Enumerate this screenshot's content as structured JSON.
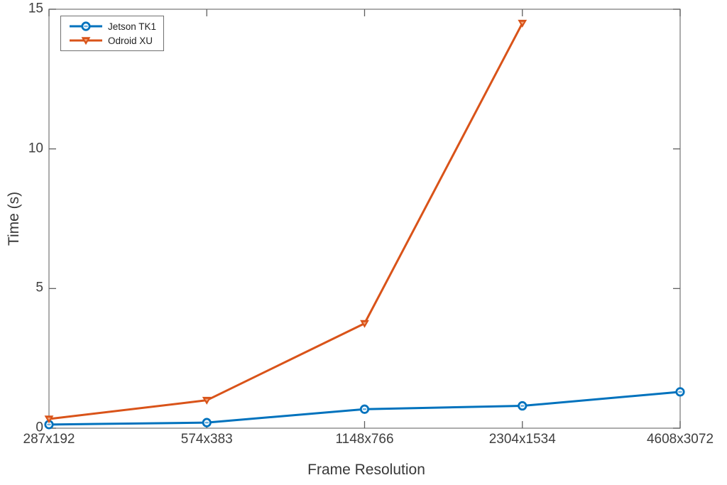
{
  "chart_data": {
    "type": "line",
    "title": "",
    "xlabel": "Frame Resolution",
    "ylabel": "Time (s)",
    "categories": [
      "287x192",
      "574x383",
      "1148x766",
      "2304x1534",
      "4608x3072"
    ],
    "series": [
      {
        "name": "Jetson TK1",
        "color": "#0072BD",
        "marker": "circle",
        "marker_center_color": "#6fb1dd",
        "values": [
          0.13,
          0.2,
          0.68,
          0.8,
          1.3
        ]
      },
      {
        "name": "Odroid XU",
        "color": "#D95319",
        "marker": "triangle-down",
        "marker_center_color": "#f0a379",
        "values": [
          0.33,
          1.0,
          3.75,
          14.5,
          null
        ]
      }
    ],
    "ylim": [
      0,
      15
    ],
    "y_ticks": [
      0,
      5,
      10,
      15
    ],
    "grid": false,
    "legend_position": "top-left",
    "axis_color": "#808080",
    "tick_color": "#5f5f5f"
  }
}
